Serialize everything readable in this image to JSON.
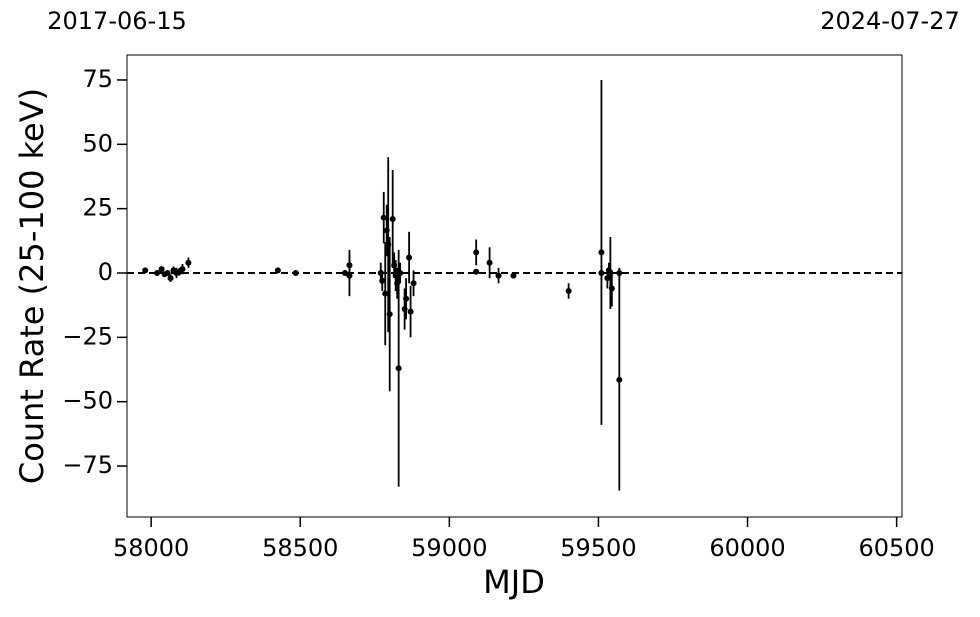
{
  "chart_data": {
    "type": "errorbar",
    "xlabel": "MJD",
    "ylabel": "Count Rate (25-100 keV)",
    "xlim": [
      57919,
      60518
    ],
    "ylim": [
      -94.8,
      84.7
    ],
    "xticks": [
      58000,
      58500,
      59000,
      59500,
      60000,
      60500
    ],
    "yticks": [
      {
        "value": -75,
        "label": "−75"
      },
      {
        "value": -50,
        "label": "−50"
      },
      {
        "value": -25,
        "label": "−25"
      },
      0,
      25,
      50,
      75
    ],
    "top_xticks": [
      {
        "value": 57919,
        "label": "2017-06-15"
      },
      {
        "value": 60518,
        "label": "2024-07-27"
      }
    ],
    "hline": 0,
    "series": [
      {
        "color": "#000000",
        "x": [
          57980,
          58020,
          58035,
          58045,
          58055,
          58065,
          58075,
          58085,
          58095,
          58105,
          58125,
          58425,
          58485,
          58650,
          58665,
          58665,
          58770,
          58775,
          58780,
          58785,
          58790,
          58795,
          58800,
          58810,
          58815,
          58820,
          58825,
          58830,
          58835,
          58850,
          58855,
          58865,
          58870,
          58880,
          59090,
          59090,
          59135,
          59165,
          59215,
          59400,
          59510,
          59510,
          59530,
          59535,
          59540,
          59545,
          59570,
          59570
        ],
        "values": [
          1,
          0,
          1.5,
          -0.5,
          0,
          -2,
          1,
          0,
          0.5,
          1.5,
          4,
          1,
          0,
          0,
          3,
          -1,
          0,
          -3,
          21.5,
          -8,
          16.5,
          11,
          -16,
          21,
          3,
          -1,
          -4,
          -37,
          0,
          -14,
          -10,
          6,
          -15,
          -4,
          8,
          0.5,
          4,
          -1,
          -1,
          -7,
          8,
          0,
          -2,
          1,
          0,
          -6,
          -41.5,
          0
        ],
        "errors": [
          1,
          1,
          1,
          1,
          1,
          1.5,
          1.5,
          2,
          1.5,
          2,
          2,
          0.5,
          0.5,
          1,
          6,
          8,
          4,
          4,
          10,
          20,
          10,
          34,
          30,
          19,
          5,
          6,
          6,
          46,
          4,
          8,
          8,
          10,
          10,
          5,
          5,
          1,
          6,
          3,
          1,
          3,
          67,
          3,
          4,
          3,
          14,
          7,
          43,
          2
        ]
      }
    ]
  }
}
